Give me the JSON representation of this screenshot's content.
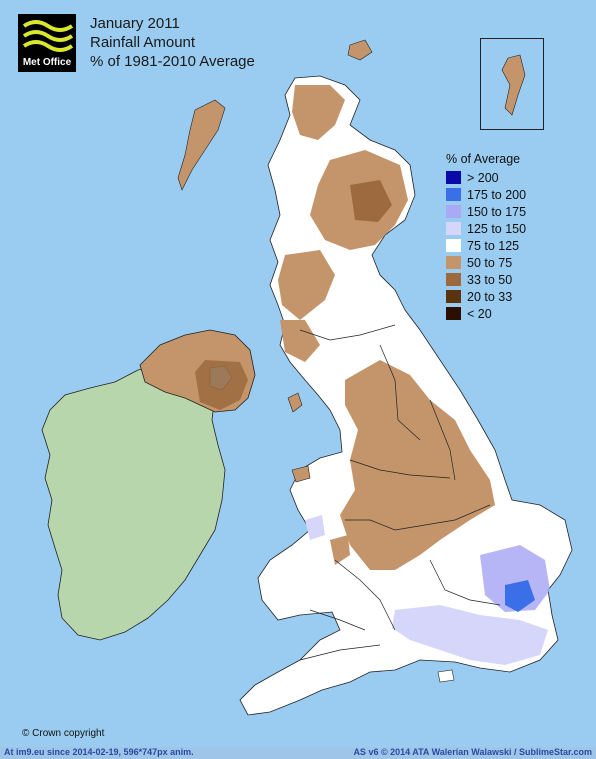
{
  "logo": {
    "text": "Met Office"
  },
  "title": {
    "line1": "January 2011",
    "line2": "Rainfall Amount",
    "line3": "% of 1981-2010 Average"
  },
  "legend": {
    "title": "% of Average",
    "items": [
      {
        "label": "> 200",
        "color": "#0a0aa8"
      },
      {
        "label": "175 to 200",
        "color": "#3a6fe8"
      },
      {
        "label": "150 to 175",
        "color": "#a9a9f5"
      },
      {
        "label": "125 to 150",
        "color": "#d6d6fb"
      },
      {
        "label": "75 to 125",
        "color": "#ffffff"
      },
      {
        "label": "50 to 75",
        "color": "#c4956a"
      },
      {
        "label": "33 to 50",
        "color": "#9c6a3e"
      },
      {
        "label": "20 to 33",
        "color": "#5a3411"
      },
      {
        "label": "< 20",
        "color": "#2b0f00"
      }
    ]
  },
  "copyright": "© Crown copyright",
  "footer": {
    "left": "At im9.eu  since 2014-02-19, 596*747px anim.",
    "right": "AS v6 © 2014 ATA Walerian Walawski / SublimeStar.com"
  },
  "colors": {
    "sea": "#99ccf0",
    "ireland": "#b8d6ac",
    "land": "#ffffff",
    "border": "#222222"
  }
}
